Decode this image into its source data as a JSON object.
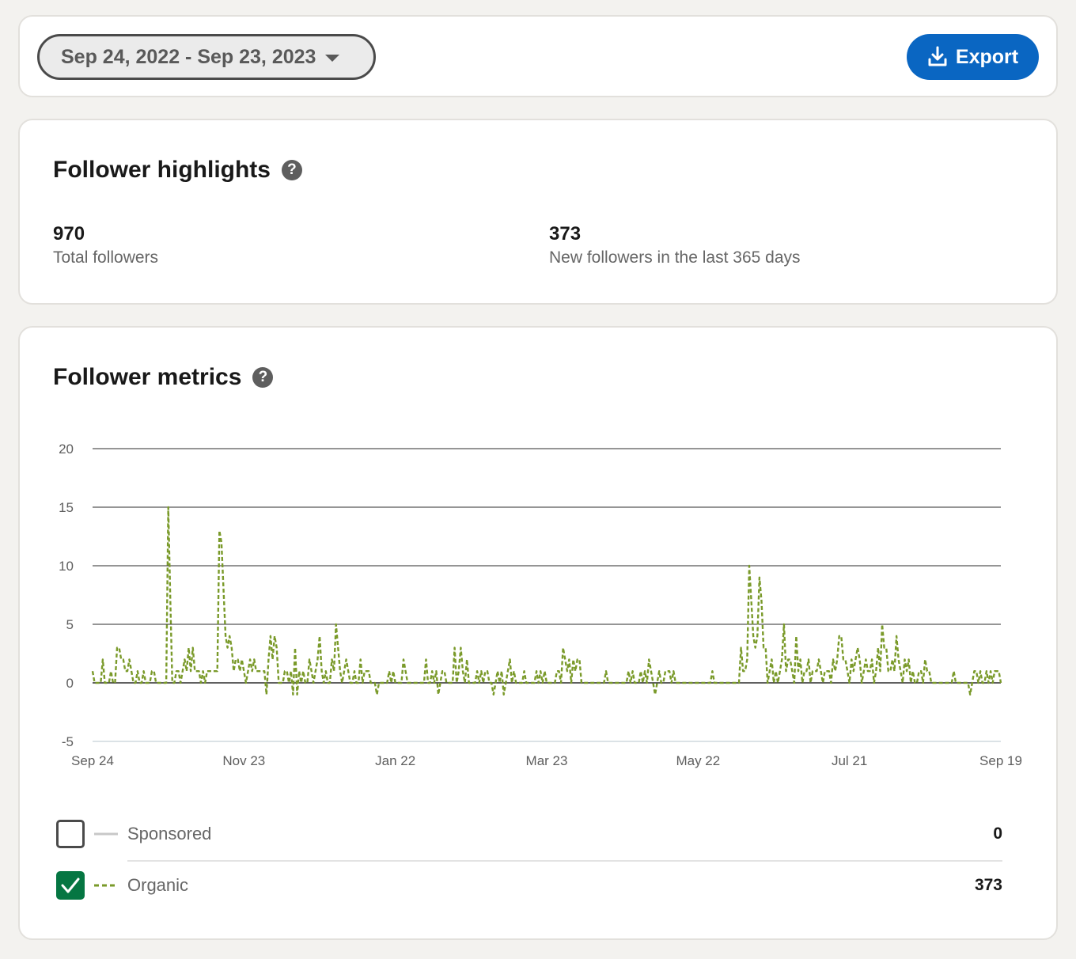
{
  "toolbar": {
    "date_range": "Sep 24, 2022 - Sep 23, 2023",
    "export_label": "Export"
  },
  "highlights": {
    "title": "Follower highlights",
    "total_value": "970",
    "total_label": "Total followers",
    "new_value": "373",
    "new_label": "New followers in the last 365 days"
  },
  "metrics": {
    "title": "Follower metrics",
    "legend": [
      {
        "label": "Sponsored",
        "value": "0",
        "checked": false,
        "color": "#c8c8c8"
      },
      {
        "label": "Organic",
        "value": "373",
        "checked": true,
        "color": "#7a9a2a"
      }
    ]
  },
  "chart_data": {
    "type": "line",
    "title": "",
    "xlabel": "",
    "ylabel": "",
    "ylim": [
      -5,
      20
    ],
    "yticks": [
      20,
      15,
      10,
      5,
      0,
      -5
    ],
    "xticks": [
      "Sep 24",
      "Nov 23",
      "Jan 22",
      "Mar 23",
      "May 22",
      "Jul 21",
      "Sep 19"
    ],
    "grid": true,
    "series": [
      {
        "name": "Organic",
        "color": "#7a9a2a",
        "dashed": true,
        "values": [
          1,
          0,
          0,
          0,
          0,
          2,
          0,
          0,
          0,
          1,
          0,
          0,
          3,
          3,
          2,
          2,
          1,
          1,
          2,
          1,
          0,
          0,
          1,
          0,
          0,
          1,
          0,
          0,
          0,
          1,
          1,
          0,
          0,
          0,
          0,
          0,
          0,
          15,
          7,
          0,
          0,
          1,
          1,
          0,
          1,
          2,
          1,
          3,
          1,
          3,
          1,
          1,
          1,
          0,
          1,
          0,
          1,
          1,
          1,
          1,
          1,
          1,
          13,
          12,
          8,
          4,
          3,
          4,
          3,
          1,
          2,
          2,
          1,
          2,
          1,
          0,
          1,
          2,
          1,
          2,
          1,
          1,
          1,
          1,
          1,
          -1,
          2,
          4,
          2,
          4,
          3,
          0,
          0,
          0,
          1,
          1,
          0,
          1,
          -1,
          3,
          -1,
          1,
          0,
          1,
          0,
          0,
          2,
          1,
          0,
          1,
          2,
          4,
          1,
          0,
          1,
          0,
          0,
          2,
          1,
          5,
          3,
          1,
          0,
          1,
          2,
          1,
          0,
          0,
          1,
          0,
          0,
          2,
          0,
          1,
          1,
          1,
          0,
          0,
          0,
          -1,
          0,
          0,
          0,
          0,
          0,
          1,
          0,
          1,
          0,
          0,
          0,
          0,
          2,
          1,
          0,
          0,
          0,
          0,
          0,
          0,
          0,
          0,
          0,
          2,
          0,
          0,
          1,
          0,
          1,
          -1,
          0,
          1,
          1,
          0,
          0,
          0,
          0,
          3,
          0,
          1,
          3,
          1,
          0,
          2,
          0,
          0,
          0,
          0,
          1,
          0,
          1,
          0,
          1,
          1,
          0,
          0,
          -1,
          0,
          1,
          0,
          1,
          -1,
          0,
          1,
          2,
          0,
          1,
          0,
          0,
          0,
          0,
          1,
          0,
          0,
          0,
          0,
          0,
          1,
          0,
          1,
          0,
          1,
          0,
          0,
          0,
          0,
          0,
          1,
          1,
          0,
          3,
          2,
          1,
          2,
          0,
          2,
          1,
          2,
          2,
          0,
          0,
          0,
          0,
          0,
          0,
          0,
          0,
          0,
          0,
          0,
          0,
          1,
          0,
          0,
          0,
          0,
          0,
          0,
          0,
          0,
          0,
          0,
          1,
          0,
          1,
          0,
          0,
          0,
          1,
          0,
          1,
          0,
          2,
          1,
          0,
          -1,
          0,
          1,
          0,
          0,
          1,
          1,
          1,
          0,
          1,
          0,
          0,
          0,
          0,
          0,
          0,
          0,
          0,
          0,
          0,
          0,
          0,
          0,
          0,
          0,
          0,
          0,
          0,
          1,
          0,
          0,
          0,
          0,
          0,
          0,
          0,
          0,
          0,
          0,
          0,
          0,
          0,
          3,
          1,
          1,
          2,
          10,
          7,
          4,
          3,
          4,
          9,
          7,
          3,
          3,
          0,
          1,
          2,
          0,
          1,
          0,
          1,
          2,
          5,
          1,
          2,
          2,
          1,
          0,
          4,
          1,
          2,
          0,
          1,
          1,
          2,
          0,
          1,
          1,
          1,
          2,
          1,
          0,
          1,
          1,
          1,
          0,
          2,
          1,
          2,
          4,
          4,
          2,
          2,
          1,
          0,
          2,
          1,
          2,
          3,
          2,
          0,
          1,
          2,
          1,
          1,
          2,
          0,
          1,
          3,
          1,
          5,
          3,
          3,
          1,
          1,
          2,
          1,
          4,
          2,
          1,
          0,
          2,
          1,
          2,
          0,
          1,
          0,
          0,
          1,
          1,
          0,
          2,
          1,
          1,
          0,
          0,
          0,
          0,
          0,
          0,
          0,
          0,
          0,
          0,
          0,
          1,
          0,
          0,
          0,
          0,
          0,
          0,
          0,
          -1,
          0,
          1,
          1,
          0,
          1,
          0,
          0,
          1,
          0,
          1,
          0,
          1,
          1,
          1,
          0
        ]
      }
    ]
  }
}
